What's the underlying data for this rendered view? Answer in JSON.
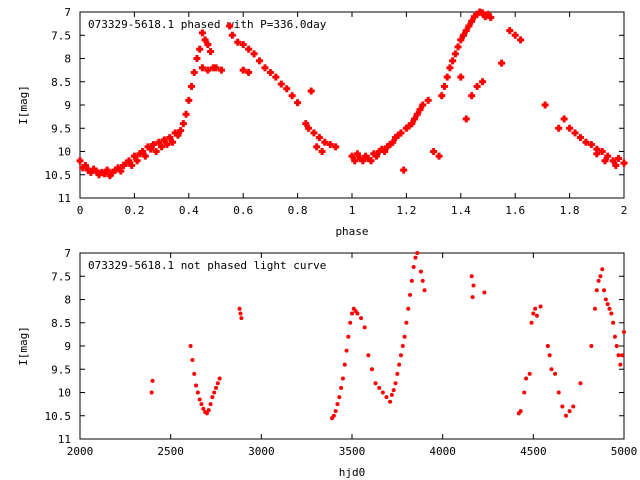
{
  "chart_data": [
    {
      "type": "scatter",
      "title": "073329-5618.1 phased with P=336.0day",
      "xlabel": "phase",
      "ylabel": "I[mag]",
      "xlim": [
        0,
        2
      ],
      "ylim": [
        7,
        11
      ],
      "y_inverted": true,
      "grid": false,
      "x_ticks": [
        0,
        0.2,
        0.4,
        0.6,
        0.8,
        1,
        1.2,
        1.4,
        1.6,
        1.8,
        2
      ],
      "y_ticks": [
        7,
        7.5,
        8,
        8.5,
        9,
        9.5,
        10,
        10.5,
        11
      ],
      "marker": "plus",
      "color": "#ff0000",
      "points": [
        [
          0.0,
          10.2
        ],
        [
          0.01,
          10.35
        ],
        [
          0.02,
          10.3
        ],
        [
          0.03,
          10.4
        ],
        [
          0.04,
          10.45
        ],
        [
          0.05,
          10.38
        ],
        [
          0.06,
          10.42
        ],
        [
          0.07,
          10.5
        ],
        [
          0.08,
          10.45
        ],
        [
          0.09,
          10.48
        ],
        [
          0.1,
          10.4
        ],
        [
          0.11,
          10.52
        ],
        [
          0.12,
          10.45
        ],
        [
          0.13,
          10.4
        ],
        [
          0.14,
          10.35
        ],
        [
          0.15,
          10.42
        ],
        [
          0.16,
          10.3
        ],
        [
          0.17,
          10.25
        ],
        [
          0.18,
          10.2
        ],
        [
          0.19,
          10.3
        ],
        [
          0.2,
          10.1
        ],
        [
          0.21,
          10.2
        ],
        [
          0.22,
          10.05
        ],
        [
          0.23,
          10.0
        ],
        [
          0.24,
          10.1
        ],
        [
          0.25,
          9.9
        ],
        [
          0.26,
          9.95
        ],
        [
          0.27,
          9.85
        ],
        [
          0.28,
          10.0
        ],
        [
          0.29,
          9.8
        ],
        [
          0.3,
          9.9
        ],
        [
          0.31,
          9.75
        ],
        [
          0.32,
          9.85
        ],
        [
          0.33,
          9.7
        ],
        [
          0.34,
          9.8
        ],
        [
          0.35,
          9.6
        ],
        [
          0.36,
          9.65
        ],
        [
          0.37,
          9.55
        ],
        [
          0.38,
          9.4
        ],
        [
          0.39,
          9.2
        ],
        [
          0.4,
          8.9
        ],
        [
          0.41,
          8.6
        ],
        [
          0.42,
          8.3
        ],
        [
          0.43,
          8.0
        ],
        [
          0.44,
          7.8
        ],
        [
          0.45,
          7.45
        ],
        [
          0.46,
          7.6
        ],
        [
          0.47,
          7.7
        ],
        [
          0.48,
          7.85
        ],
        [
          0.5,
          8.2
        ],
        [
          0.45,
          8.2
        ],
        [
          0.47,
          8.25
        ],
        [
          0.49,
          8.2
        ],
        [
          0.52,
          8.25
        ],
        [
          0.55,
          7.3
        ],
        [
          0.56,
          7.5
        ],
        [
          0.58,
          7.65
        ],
        [
          0.6,
          7.7
        ],
        [
          0.62,
          7.8
        ],
        [
          0.64,
          7.9
        ],
        [
          0.66,
          8.05
        ],
        [
          0.68,
          8.2
        ],
        [
          0.7,
          8.3
        ],
        [
          0.72,
          8.4
        ],
        [
          0.74,
          8.55
        ],
        [
          0.76,
          8.65
        ],
        [
          0.78,
          8.8
        ],
        [
          0.8,
          8.95
        ],
        [
          0.6,
          8.25
        ],
        [
          0.62,
          8.3
        ],
        [
          0.85,
          8.7
        ],
        [
          0.83,
          9.4
        ],
        [
          0.84,
          9.5
        ],
        [
          0.86,
          9.6
        ],
        [
          0.88,
          9.7
        ],
        [
          0.9,
          9.8
        ],
        [
          0.92,
          9.85
        ],
        [
          0.94,
          9.9
        ],
        [
          0.87,
          9.9
        ],
        [
          0.89,
          10.0
        ],
        [
          1.0,
          10.1
        ],
        [
          1.01,
          10.2
        ],
        [
          1.02,
          10.05
        ],
        [
          1.03,
          10.15
        ],
        [
          1.04,
          10.2
        ],
        [
          1.05,
          10.1
        ],
        [
          1.06,
          10.15
        ],
        [
          1.07,
          10.2
        ],
        [
          1.08,
          10.05
        ],
        [
          1.09,
          10.1
        ],
        [
          1.1,
          10.0
        ],
        [
          1.11,
          9.95
        ],
        [
          1.12,
          10.0
        ],
        [
          1.13,
          9.9
        ],
        [
          1.14,
          9.85
        ],
        [
          1.15,
          9.8
        ],
        [
          1.16,
          9.7
        ],
        [
          1.17,
          9.65
        ],
        [
          1.18,
          9.6
        ],
        [
          1.19,
          10.4
        ],
        [
          1.2,
          9.5
        ],
        [
          1.21,
          9.45
        ],
        [
          1.22,
          9.4
        ],
        [
          1.23,
          9.3
        ],
        [
          1.24,
          9.2
        ],
        [
          1.25,
          9.1
        ],
        [
          1.26,
          9.0
        ],
        [
          1.28,
          8.9
        ],
        [
          1.3,
          10.0
        ],
        [
          1.32,
          10.1
        ],
        [
          1.33,
          8.8
        ],
        [
          1.34,
          8.6
        ],
        [
          1.35,
          8.4
        ],
        [
          1.36,
          8.2
        ],
        [
          1.37,
          8.05
        ],
        [
          1.38,
          7.9
        ],
        [
          1.39,
          7.75
        ],
        [
          1.4,
          7.6
        ],
        [
          1.41,
          7.5
        ],
        [
          1.42,
          7.4
        ],
        [
          1.43,
          7.3
        ],
        [
          1.44,
          7.2
        ],
        [
          1.45,
          7.1
        ],
        [
          1.46,
          7.05
        ],
        [
          1.47,
          7.0
        ],
        [
          1.48,
          7.02
        ],
        [
          1.49,
          7.1
        ],
        [
          1.5,
          7.05
        ],
        [
          1.51,
          7.12
        ],
        [
          1.4,
          8.4
        ],
        [
          1.42,
          9.3
        ],
        [
          1.44,
          8.8
        ],
        [
          1.46,
          8.6
        ],
        [
          1.48,
          8.5
        ],
        [
          1.58,
          7.4
        ],
        [
          1.6,
          7.5
        ],
        [
          1.62,
          7.6
        ],
        [
          1.55,
          8.1
        ],
        [
          1.71,
          9.0
        ],
        [
          1.76,
          9.5
        ],
        [
          1.78,
          9.3
        ],
        [
          1.8,
          9.5
        ],
        [
          1.82,
          9.6
        ],
        [
          1.84,
          9.7
        ],
        [
          1.86,
          9.8
        ],
        [
          1.88,
          9.85
        ],
        [
          1.9,
          9.95
        ],
        [
          1.92,
          10.0
        ],
        [
          1.94,
          10.1
        ],
        [
          1.96,
          10.2
        ],
        [
          1.98,
          10.15
        ],
        [
          2.0,
          10.25
        ],
        [
          1.9,
          10.05
        ],
        [
          1.93,
          10.2
        ],
        [
          1.97,
          10.3
        ]
      ]
    },
    {
      "type": "scatter",
      "title": "073329-5618.1 not phased light curve",
      "xlabel": "hjd0",
      "ylabel": "I[mag]",
      "xlim": [
        2000,
        5000
      ],
      "ylim": [
        7,
        11
      ],
      "y_inverted": true,
      "grid": false,
      "x_ticks": [
        2000,
        2500,
        3000,
        3500,
        4000,
        4500,
        5000
      ],
      "y_ticks": [
        7,
        7.5,
        8,
        8.5,
        9,
        9.5,
        10,
        10.5,
        11
      ],
      "marker": "dot",
      "color": "#ff0000",
      "points": [
        [
          2395,
          10.0
        ],
        [
          2400,
          9.75
        ],
        [
          2610,
          9.0
        ],
        [
          2620,
          9.3
        ],
        [
          2630,
          9.6
        ],
        [
          2640,
          9.85
        ],
        [
          2650,
          10.0
        ],
        [
          2660,
          10.15
        ],
        [
          2670,
          10.25
        ],
        [
          2680,
          10.35
        ],
        [
          2690,
          10.42
        ],
        [
          2700,
          10.45
        ],
        [
          2710,
          10.38
        ],
        [
          2720,
          10.25
        ],
        [
          2730,
          10.1
        ],
        [
          2740,
          10.0
        ],
        [
          2750,
          9.9
        ],
        [
          2760,
          9.8
        ],
        [
          2770,
          9.7
        ],
        [
          2880,
          8.2
        ],
        [
          2885,
          8.3
        ],
        [
          2890,
          8.4
        ],
        [
          3390,
          10.55
        ],
        [
          3400,
          10.5
        ],
        [
          3410,
          10.4
        ],
        [
          3420,
          10.25
        ],
        [
          3430,
          10.1
        ],
        [
          3440,
          9.9
        ],
        [
          3450,
          9.7
        ],
        [
          3460,
          9.4
        ],
        [
          3470,
          9.1
        ],
        [
          3480,
          8.8
        ],
        [
          3490,
          8.5
        ],
        [
          3500,
          8.3
        ],
        [
          3510,
          8.2
        ],
        [
          3520,
          8.25
        ],
        [
          3530,
          8.3
        ],
        [
          3550,
          8.4
        ],
        [
          3570,
          8.6
        ],
        [
          3590,
          9.2
        ],
        [
          3610,
          9.5
        ],
        [
          3630,
          9.8
        ],
        [
          3650,
          9.9
        ],
        [
          3670,
          10.0
        ],
        [
          3690,
          10.1
        ],
        [
          3710,
          10.2
        ],
        [
          3720,
          10.05
        ],
        [
          3730,
          9.95
        ],
        [
          3740,
          9.8
        ],
        [
          3750,
          9.6
        ],
        [
          3760,
          9.4
        ],
        [
          3770,
          9.2
        ],
        [
          3780,
          9.0
        ],
        [
          3790,
          8.8
        ],
        [
          3800,
          8.5
        ],
        [
          3810,
          8.2
        ],
        [
          3820,
          7.9
        ],
        [
          3830,
          7.6
        ],
        [
          3840,
          7.3
        ],
        [
          3850,
          7.1
        ],
        [
          3860,
          7.0
        ],
        [
          3880,
          7.4
        ],
        [
          3890,
          7.6
        ],
        [
          3900,
          7.8
        ],
        [
          4160,
          7.5
        ],
        [
          4170,
          7.7
        ],
        [
          4165,
          7.95
        ],
        [
          4230,
          7.85
        ],
        [
          4420,
          10.45
        ],
        [
          4430,
          10.4
        ],
        [
          4450,
          10.0
        ],
        [
          4460,
          9.7
        ],
        [
          4480,
          9.6
        ],
        [
          4490,
          8.5
        ],
        [
          4500,
          8.3
        ],
        [
          4510,
          8.2
        ],
        [
          4520,
          8.35
        ],
        [
          4540,
          8.15
        ],
        [
          4580,
          9.0
        ],
        [
          4590,
          9.2
        ],
        [
          4600,
          9.5
        ],
        [
          4620,
          9.6
        ],
        [
          4640,
          10.0
        ],
        [
          4660,
          10.3
        ],
        [
          4680,
          10.5
        ],
        [
          4700,
          10.4
        ],
        [
          4720,
          10.3
        ],
        [
          4760,
          9.8
        ],
        [
          4820,
          9.0
        ],
        [
          4840,
          8.2
        ],
        [
          4850,
          7.8
        ],
        [
          4860,
          7.6
        ],
        [
          4870,
          7.5
        ],
        [
          4880,
          7.35
        ],
        [
          4890,
          7.8
        ],
        [
          4900,
          8.0
        ],
        [
          4910,
          8.1
        ],
        [
          4920,
          8.2
        ],
        [
          4930,
          8.3
        ],
        [
          4940,
          8.5
        ],
        [
          4950,
          8.8
        ],
        [
          4960,
          9.0
        ],
        [
          4970,
          9.2
        ],
        [
          4980,
          9.4
        ],
        [
          4990,
          9.2
        ],
        [
          5000,
          8.7
        ]
      ]
    }
  ]
}
